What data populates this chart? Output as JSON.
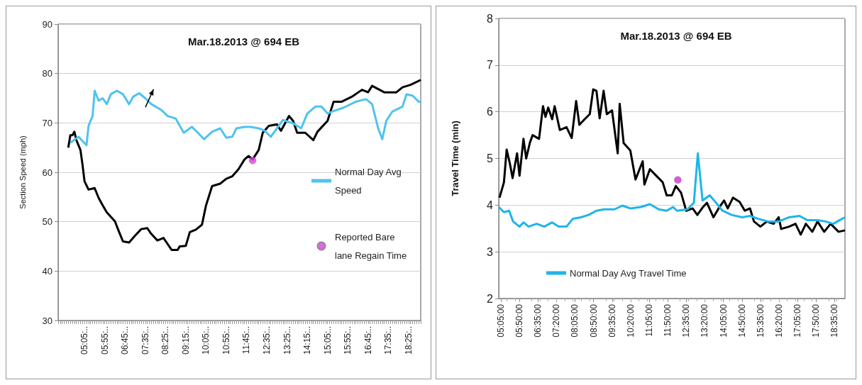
{
  "chart_data": [
    {
      "type": "line",
      "title": "Mar.18.2013 @ 694 EB",
      "ylabel": "Section Speed (mph)",
      "ylim": [
        30,
        90
      ],
      "yticks": [
        30,
        40,
        50,
        60,
        70,
        80,
        90
      ],
      "categories": [
        null,
        null,
        null,
        null,
        null,
        null,
        null,
        null,
        null,
        null,
        null,
        null,
        null,
        "05:05:..",
        null,
        null,
        null,
        null,
        null,
        null,
        null,
        null,
        null,
        "05:55:..",
        null,
        null,
        null,
        null,
        null,
        null,
        null,
        null,
        null,
        "06:45:..",
        null,
        null,
        null,
        null,
        null,
        null,
        null,
        null,
        null,
        "07:35:..",
        null,
        null,
        null,
        null,
        null,
        null,
        null,
        null,
        null,
        "08:25:..",
        null,
        null,
        null,
        null,
        null,
        null,
        null,
        null,
        null,
        "09:15:..",
        null,
        null,
        null,
        null,
        null,
        null,
        null,
        null,
        null,
        "10:05:..",
        null,
        null,
        null,
        null,
        null,
        null,
        null,
        null,
        null,
        "10:55:..",
        null,
        null,
        null,
        null,
        null,
        null,
        null,
        null,
        null,
        "11:45:..",
        null,
        null,
        null,
        null,
        null,
        null,
        null,
        null,
        null,
        "12:35:..",
        null,
        null,
        null,
        null,
        null,
        null,
        null,
        null,
        null,
        "13:25:..",
        null,
        null,
        null,
        null,
        null,
        null,
        null,
        null,
        null,
        "14:15:..",
        null,
        null,
        null,
        null,
        null,
        null,
        null,
        null,
        null,
        "15:05:..",
        null,
        null,
        null,
        null,
        null,
        null,
        null,
        null,
        null,
        "15:55:..",
        null,
        null,
        null,
        null,
        null,
        null,
        null,
        null,
        null,
        "16:45:..",
        null,
        null,
        null,
        null,
        null,
        null,
        null,
        null,
        null,
        "17:35:..",
        null,
        null,
        null,
        null,
        null,
        null,
        null,
        null,
        null,
        "18:25:..",
        null,
        null,
        null,
        null,
        null,
        null
      ],
      "grid": "y",
      "legend": "right",
      "marker": "none",
      "series": [
        {
          "color": "#000000",
          "values": [
            null,
            null,
            null,
            null,
            null,
            65,
            67.5,
            67.5,
            68.2,
            66.5,
            null,
            64.5,
            61.6,
            58.2,
            null,
            56.5,
            null,
            null,
            56.8,
            null,
            54.8,
            null,
            53.3,
            null,
            51.9,
            null,
            null,
            null,
            50.1,
            null,
            48,
            null,
            46,
            null,
            null,
            45.8,
            null,
            null,
            47.2,
            null,
            null,
            48.5,
            null,
            null,
            48.7,
            null,
            47.5,
            null,
            null,
            46.2,
            null,
            null,
            46.7,
            null,
            45.5,
            null,
            44.3,
            null,
            null,
            44.3,
            45,
            null,
            null,
            45.1,
            null,
            47.9,
            null,
            null,
            48.4,
            null,
            null,
            49.4,
            null,
            53.3,
            null,
            null,
            57.2,
            null,
            null,
            null,
            57.7,
            null,
            null,
            58.7,
            null,
            null,
            59.2,
            null,
            null,
            60.6,
            null,
            null,
            62.6,
            null,
            63.3,
            null,
            62.6,
            null,
            null,
            64.5,
            null,
            68,
            null,
            null,
            69.4,
            null,
            null,
            null,
            69.7,
            null,
            68.4,
            null,
            null,
            null,
            71.4,
            null,
            70.4,
            null,
            68,
            null,
            null,
            null,
            68,
            null,
            null,
            null,
            66.5,
            null,
            68.2,
            null,
            null,
            null,
            null,
            70.4,
            null,
            null,
            74.3,
            null,
            null,
            null,
            74.3,
            null,
            null,
            null,
            null,
            75.3,
            null,
            null,
            null,
            null,
            76.7,
            null,
            null,
            76.2,
            null,
            77.5,
            null,
            null,
            null,
            null,
            null,
            76.2,
            null,
            null,
            null,
            null,
            null,
            76.2,
            null,
            null,
            77.2,
            null,
            null,
            null,
            77.7,
            null,
            null,
            null,
            null,
            78.7
          ]
        },
        {
          "name": "Normal Day Avg Speed",
          "color": "#4fc3ef",
          "values": [
            null,
            null,
            null,
            null,
            null,
            null,
            66,
            null,
            null,
            null,
            67.2,
            null,
            null,
            null,
            65.5,
            69.4,
            null,
            71.4,
            76.5,
            null,
            74.5,
            null,
            75,
            null,
            73.8,
            null,
            75.8,
            null,
            null,
            76.5,
            null,
            null,
            75.8,
            null,
            null,
            73.8,
            null,
            75.3,
            null,
            null,
            76,
            null,
            null,
            75,
            null,
            null,
            73.8,
            null,
            null,
            null,
            null,
            72.6,
            null,
            null,
            71.4,
            null,
            null,
            null,
            70.9,
            null,
            null,
            null,
            68,
            null,
            null,
            null,
            69.2,
            null,
            null,
            68,
            null,
            null,
            66.7,
            null,
            null,
            null,
            68.2,
            null,
            null,
            null,
            68.9,
            null,
            null,
            67,
            null,
            null,
            67.2,
            null,
            68.9,
            null,
            null,
            null,
            69.2,
            null,
            null,
            69.2,
            null,
            null,
            null,
            68.9,
            null,
            null,
            68.4,
            null,
            null,
            67.2,
            null,
            null,
            68.9,
            null,
            null,
            70.6,
            null,
            null,
            null,
            null,
            69.9,
            null,
            null,
            null,
            68.9,
            null,
            null,
            71.9,
            null,
            null,
            null,
            73.3,
            null,
            null,
            73.3,
            null,
            null,
            71.9,
            null,
            null,
            72.4,
            null,
            null,
            null,
            null,
            73.1,
            null,
            null,
            null,
            null,
            null,
            74.3,
            null,
            null,
            null,
            null,
            74.8,
            null,
            null,
            73.8,
            null,
            null,
            68.9,
            null,
            66.7,
            null,
            70.4,
            null,
            null,
            72.3,
            null,
            null,
            null,
            null,
            73.3,
            null,
            75.8,
            null,
            null,
            75.5,
            null,
            null,
            74.3,
            74.3
          ]
        },
        {
          "type": "scatter",
          "name": "Reported Bare lane Regain Time",
          "color": "#e040e0",
          "marker": "circle",
          "values": [
            null,
            null,
            null,
            null,
            null,
            null,
            null,
            null,
            null,
            null,
            null,
            null,
            null,
            null,
            null,
            null,
            null,
            null,
            null,
            null,
            null,
            null,
            null,
            null,
            null,
            null,
            null,
            null,
            null,
            null,
            null,
            null,
            null,
            null,
            null,
            null,
            null,
            null,
            null,
            null,
            null,
            null,
            null,
            null,
            null,
            null,
            null,
            null,
            null,
            null,
            null,
            null,
            null,
            null,
            null,
            null,
            null,
            null,
            null,
            null,
            null,
            null,
            null,
            null,
            null,
            null,
            null,
            null,
            null,
            null,
            null,
            null,
            null,
            null,
            null,
            null,
            null,
            null,
            null,
            null,
            null,
            null,
            null,
            null,
            null,
            null,
            null,
            null,
            null,
            null,
            null,
            null,
            null,
            null,
            null,
            null,
            62.4,
            null,
            null,
            null,
            null,
            null,
            null,
            null,
            null,
            null,
            null,
            null,
            null,
            null,
            null,
            null,
            null,
            null,
            null,
            null,
            null,
            null,
            null,
            null,
            null,
            null,
            null,
            null,
            null,
            null,
            null,
            null,
            null,
            null,
            null,
            null,
            null,
            null,
            null,
            null,
            null,
            null,
            null,
            null,
            null,
            null,
            null,
            null,
            null,
            null,
            null,
            null,
            null,
            null,
            null,
            null,
            null,
            null,
            null,
            null,
            null,
            null,
            null,
            null,
            null,
            null,
            null,
            null,
            null,
            null,
            null,
            null,
            null,
            null,
            null,
            null,
            null,
            null,
            null,
            null,
            null,
            null,
            null,
            null
          ]
        }
      ]
    },
    {
      "type": "line",
      "title": "Mar.18.2013 @ 694 EB",
      "ylabel": "Travel Time (min)",
      "xlim": [
        5,
        19
      ],
      "ylim": [
        2,
        8
      ],
      "yticks": [
        2,
        3,
        4,
        5,
        6,
        7,
        8
      ],
      "xticks": [
        {
          "value": 5.0833,
          "label": "05:05:00"
        },
        {
          "value": 5.8333,
          "label": "05:50:00"
        },
        {
          "value": 6.5833,
          "label": "06:35:00"
        },
        {
          "value": 7.3333,
          "label": "07:20:00"
        },
        {
          "value": 8.0833,
          "label": "08:05:00"
        },
        {
          "value": 8.8333,
          "label": "08:50:00"
        },
        {
          "value": 9.5833,
          "label": "09:35:00"
        },
        {
          "value": 10.3333,
          "label": "10:20:00"
        },
        {
          "value": 11.0833,
          "label": "11:05:00"
        },
        {
          "value": 11.8333,
          "label": "11:50:00"
        },
        {
          "value": 12.5833,
          "label": "12:35:00"
        },
        {
          "value": 13.3333,
          "label": "13:20:00"
        },
        {
          "value": 14.0833,
          "label": "14:05:00"
        },
        {
          "value": 14.8333,
          "label": "14:50:00"
        },
        {
          "value": 15.5833,
          "label": "15:35:00"
        },
        {
          "value": 16.3333,
          "label": "16:20:00"
        },
        {
          "value": 17.0833,
          "label": "17:05:00"
        },
        {
          "value": 17.8333,
          "label": "17:50:00"
        },
        {
          "value": 18.5833,
          "label": "18:35:00"
        }
      ],
      "grid": "y",
      "legend": "bottom",
      "marker": "none",
      "series": [
        {
          "color": "#000000",
          "x": [
            5.03,
            5.21,
            5.32,
            5.45,
            5.56,
            5.74,
            5.84,
            6,
            6.11,
            6.26,
            6.37,
            6.63,
            6.79,
            6.89,
            7,
            7.16,
            7.26,
            7.47,
            7.74,
            7.95,
            8.13,
            8.26,
            8.47,
            8.68,
            8.82,
            8.95,
            9.08,
            9.24,
            9.37,
            9.58,
            9.81,
            9.89,
            10.05,
            10.32,
            10.53,
            10.82,
            10.89,
            11.11,
            11.37,
            11.63,
            11.79,
            12,
            12.16,
            12.37,
            12.58,
            12.84,
            13.03,
            13.26,
            13.42,
            13.68,
            13.89,
            14.11,
            14.26,
            14.47,
            14.74,
            14.95,
            15.16,
            15.32,
            15.58,
            15.84,
            16.11,
            16.32,
            16.42,
            16.74,
            17,
            17.21,
            17.42,
            17.68,
            17.89,
            18.16,
            18.42,
            18.74,
            19
          ],
          "values": [
            4.16,
            4.49,
            5.19,
            4.89,
            4.58,
            5.11,
            4.63,
            5.42,
            5,
            5.34,
            5.5,
            5.42,
            6.12,
            5.89,
            6.09,
            5.84,
            6.12,
            5.61,
            5.67,
            5.44,
            6.23,
            5.72,
            5.84,
            5.95,
            6.48,
            6.45,
            5.86,
            6.45,
            5.95,
            6.03,
            5.11,
            6.17,
            5.33,
            5.17,
            4.55,
            4.94,
            4.44,
            4.77,
            4.63,
            4.49,
            4.21,
            4.21,
            4.41,
            4.27,
            3.88,
            3.93,
            3.79,
            3.96,
            4.05,
            3.74,
            3.93,
            4.1,
            3.93,
            4.16,
            4.07,
            3.88,
            3.93,
            3.65,
            3.54,
            3.65,
            3.6,
            3.74,
            3.49,
            3.54,
            3.6,
            3.37,
            3.6,
            3.43,
            3.65,
            3.43,
            3.6,
            3.43,
            3.46
          ]
        },
        {
          "name": "Normal Day Avg Travel Time",
          "color": "#1fb4ea",
          "x": [
            5,
            5.21,
            5.42,
            5.58,
            5.84,
            6,
            6.21,
            6.53,
            6.84,
            7.16,
            7.42,
            7.74,
            8,
            8.32,
            8.63,
            8.95,
            9.26,
            9.68,
            10,
            10.32,
            10.74,
            11.11,
            11.47,
            11.79,
            12.05,
            12.21,
            12.63,
            12.89,
            13.05,
            13.24,
            13.53,
            13.79,
            14.05,
            14.42,
            14.84,
            15.16,
            15.47,
            15.89,
            16.32,
            16.74,
            17.16,
            17.47,
            17.89,
            18.21,
            18.53,
            18.79,
            19
          ],
          "values": [
            3.96,
            3.85,
            3.88,
            3.65,
            3.54,
            3.63,
            3.54,
            3.6,
            3.54,
            3.63,
            3.54,
            3.54,
            3.71,
            3.74,
            3.79,
            3.88,
            3.91,
            3.91,
            3.99,
            3.93,
            3.96,
            4.02,
            3.91,
            3.88,
            3.96,
            3.88,
            3.91,
            4.05,
            5.11,
            4.1,
            4.21,
            4.05,
            3.88,
            3.79,
            3.74,
            3.77,
            3.71,
            3.65,
            3.65,
            3.74,
            3.77,
            3.68,
            3.68,
            3.65,
            3.6,
            3.68,
            3.74
          ]
        },
        {
          "type": "scatter",
          "color": "#cc33cc",
          "marker": "circle",
          "x": [
            12.24
          ],
          "values": [
            4.54
          ]
        }
      ]
    }
  ]
}
